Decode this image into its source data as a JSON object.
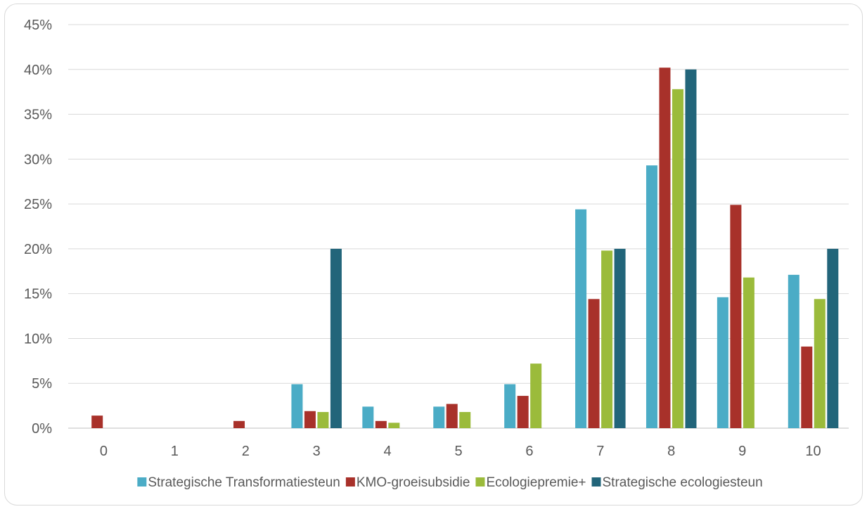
{
  "chart_data": {
    "type": "bar",
    "categories": [
      "0",
      "1",
      "2",
      "3",
      "4",
      "5",
      "6",
      "7",
      "8",
      "9",
      "10"
    ],
    "series": [
      {
        "name": "Strategische Transformatiesteun",
        "color": "#4bacc6",
        "values": [
          0,
          0,
          0,
          4.9,
          2.4,
          2.4,
          4.9,
          24.4,
          29.3,
          14.6,
          17.1
        ]
      },
      {
        "name": "KMO-groeisubsidie",
        "color": "#a8312a",
        "values": [
          1.4,
          0,
          0.8,
          1.9,
          0.8,
          2.7,
          3.6,
          14.4,
          40.2,
          24.9,
          9.1
        ]
      },
      {
        "name": "Ecologiepremie+",
        "color": "#9bbb3b",
        "values": [
          0,
          0,
          0,
          1.8,
          0.6,
          1.8,
          7.2,
          19.8,
          37.8,
          16.8,
          14.4
        ]
      },
      {
        "name": "Strategische ecologiesteun",
        "color": "#22657a",
        "values": [
          0,
          0,
          0,
          20,
          0,
          0,
          0,
          20,
          40,
          0,
          20
        ]
      }
    ],
    "y_ticks": [
      "0%",
      "5%",
      "10%",
      "15%",
      "20%",
      "25%",
      "30%",
      "35%",
      "40%",
      "45%"
    ],
    "ylim": [
      0,
      45
    ],
    "y_unit": "%",
    "grid": true,
    "legend_position": "bottom"
  }
}
